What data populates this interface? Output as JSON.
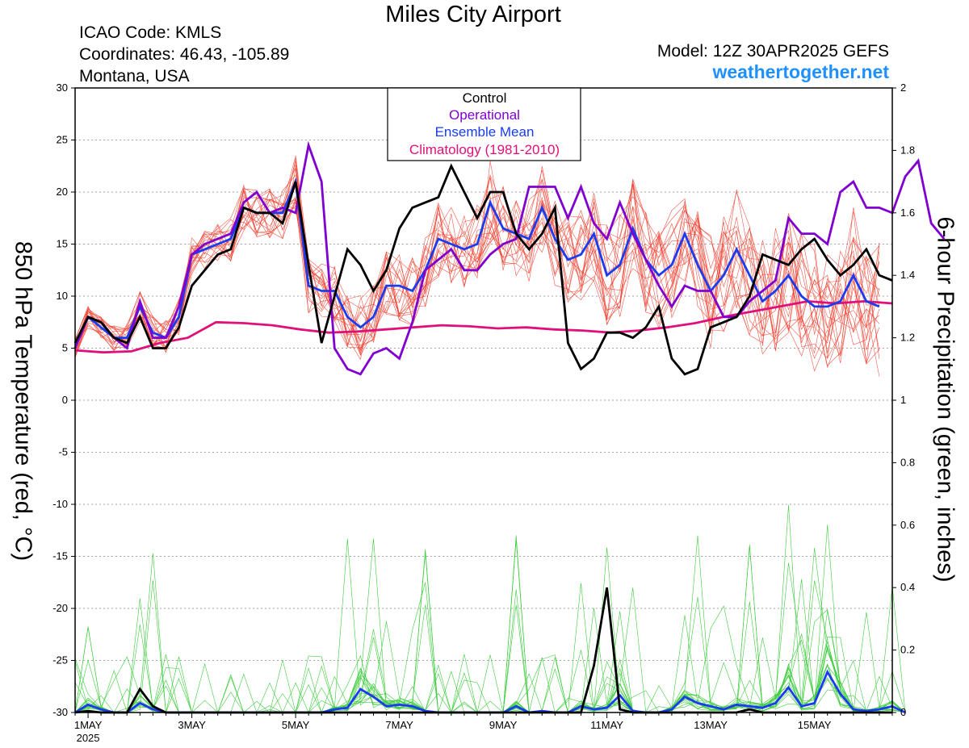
{
  "title": "Miles City Airport",
  "info": {
    "icao": "ICAO Code: KMLS",
    "coords": "Coordinates: 46.43, -105.89",
    "region": "Montana, USA",
    "model": "Model: 12Z 30APR2025 GEFS",
    "site": "weathertogether.net"
  },
  "colors": {
    "control": "#000000",
    "operational": "#8000d0",
    "mean": "#1a3cf0",
    "climatology": "#e0107a",
    "members": "#f03c2c",
    "precip": "#3ccc3c",
    "site": "#1e90ff"
  },
  "chart_data": {
    "type": "line",
    "title": "Miles City Airport",
    "ylabel": "850 hPa Temperature (red, °C)",
    "y2label": "6-hour Precipitation (green, inches)",
    "xlim": [
      0,
      63
    ],
    "ylim": [
      -30,
      30
    ],
    "y2lim": [
      0,
      2
    ],
    "grid": "dashed horizontal",
    "x_ticks": [
      {
        "x": 1,
        "label": "1MAY",
        "sub": "2025"
      },
      {
        "x": 9,
        "label": "3MAY"
      },
      {
        "x": 17,
        "label": "5MAY"
      },
      {
        "x": 25,
        "label": "7MAY"
      },
      {
        "x": 33,
        "label": "9MAY"
      },
      {
        "x": 41,
        "label": "11MAY"
      },
      {
        "x": 49,
        "label": "13MAY"
      },
      {
        "x": 57,
        "label": "15MAY"
      }
    ],
    "y_ticks": [
      30,
      25,
      20,
      15,
      10,
      5,
      0,
      -5,
      -10,
      -15,
      -20,
      -25,
      -30
    ],
    "y2_ticks": [
      "2",
      "1.8",
      "1.6",
      "1.4",
      "1.2",
      "1",
      "0.8",
      "0.6",
      "0.4",
      "0.2",
      "0"
    ],
    "legend": [
      "Control",
      "Operational",
      "Ensemble Mean",
      "Climatology (1981-2010)"
    ],
    "temperature": [
      {
        "name": "Control",
        "values": [
          5.5,
          8,
          7.5,
          6,
          5.5,
          8,
          5,
          5,
          7,
          11,
          12.5,
          14,
          14.5,
          18.5,
          18,
          18,
          17,
          21,
          13,
          5.5,
          10,
          14.5,
          13,
          10.5,
          12.5,
          16.5,
          18.5,
          19,
          19.5,
          22.5,
          20,
          17.5,
          20,
          20,
          16,
          14.5,
          16,
          18.5,
          5.5,
          3,
          4,
          6.5,
          6.5,
          6,
          7,
          9,
          4,
          2.5,
          3,
          7,
          7.5,
          8,
          10,
          14,
          13.5,
          13,
          14.5,
          15.5,
          13.5,
          12,
          13,
          14.5,
          12,
          11.5
        ]
      },
      {
        "name": "Operational",
        "values": [
          5,
          8,
          7.5,
          6,
          5,
          9.5,
          6,
          6,
          9,
          14,
          15,
          15.5,
          16,
          19,
          20,
          18,
          18.5,
          18,
          24.5,
          21,
          5,
          3,
          2.5,
          4.5,
          5,
          4,
          7.5,
          12.5,
          13.5,
          14.5,
          12.5,
          12.5,
          14,
          15,
          15.5,
          20.5,
          20.5,
          20.5,
          17.5,
          20.5,
          17,
          15.5,
          19,
          16,
          13.5,
          11,
          9,
          11,
          10.5,
          10.5,
          8,
          8,
          9.5,
          10.5,
          11.5,
          17.5,
          16,
          16,
          15,
          20,
          21,
          18.5,
          18.5,
          18,
          21.5,
          23,
          17,
          15.5
        ]
      },
      {
        "name": "Ensemble Mean",
        "values": [
          5,
          8,
          7,
          6,
          6,
          9,
          6.5,
          6,
          8,
          14,
          14.5,
          15,
          15.5,
          18.5,
          18,
          18,
          18,
          21,
          11,
          10.5,
          10.5,
          8,
          7,
          8,
          11,
          11,
          10.5,
          12.5,
          15.5,
          15,
          14.5,
          15,
          19,
          16.5,
          16,
          15.5,
          18.5,
          15.5,
          13.5,
          14,
          16,
          12,
          13,
          16.5,
          13.5,
          12,
          13,
          16,
          13,
          10.5,
          12,
          14.5,
          12,
          9.5,
          10.5,
          12,
          10,
          9,
          9,
          9.5,
          12,
          9.5,
          9
        ]
      },
      {
        "name": "Climatology (1981-2010)",
        "values": [
          4.8,
          4.6,
          4.7,
          5.5,
          6,
          7.5,
          7.4,
          7.2,
          6.8,
          6.5,
          6.6,
          6.8,
          7,
          7.2,
          7.1,
          6.9,
          7,
          6.8,
          6.7,
          6.5,
          6.7,
          7,
          7.4,
          8,
          8.5,
          9,
          9.5,
          9.3,
          9.5,
          9.3
        ]
      }
    ],
    "precipitation": [
      {
        "name": "Control",
        "values": [
          0,
          0.005,
          0,
          0,
          0,
          0.075,
          0.02,
          0,
          0,
          0,
          0,
          0,
          0,
          0,
          0,
          0,
          0,
          0,
          0,
          0,
          0,
          0,
          0,
          0,
          0,
          0,
          0,
          0,
          0,
          0,
          0,
          0,
          0,
          0,
          0,
          0,
          0,
          0,
          0,
          0,
          0.15,
          0.4,
          0.01,
          0,
          0,
          0,
          0,
          0,
          0,
          0,
          0,
          0,
          0.01,
          0,
          0,
          0,
          0,
          0,
          0,
          0,
          0,
          0,
          0,
          0
        ]
      },
      {
        "name": "Ensemble Mean",
        "values": [
          0,
          0.025,
          0.01,
          0,
          0,
          0.03,
          0.01,
          0,
          0,
          0,
          0,
          0,
          0,
          0,
          0,
          0,
          0,
          0,
          0,
          0,
          0.01,
          0.015,
          0.075,
          0.05,
          0.02,
          0.025,
          0.02,
          0.005,
          0,
          0,
          0,
          0,
          0,
          0,
          0.02,
          0,
          0.005,
          0,
          0,
          0.02,
          0.01,
          0.015,
          0.055,
          0.005,
          0,
          0,
          0.01,
          0.05,
          0.03,
          0.02,
          0.01,
          0.025,
          0.02,
          0.015,
          0.03,
          0.08,
          0.02,
          0.03,
          0.13,
          0.06,
          0.01,
          0.005,
          0.01,
          0.02,
          0
        ]
      }
    ]
  }
}
